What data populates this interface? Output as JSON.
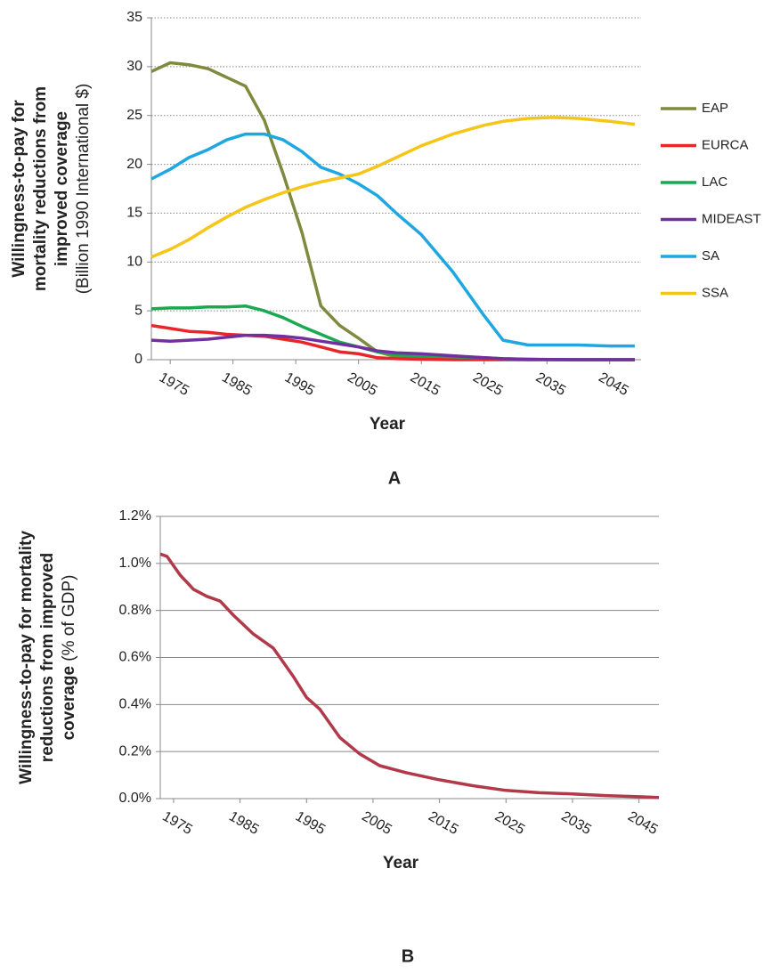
{
  "chart_data": [
    {
      "type": "line",
      "panel_label": "A",
      "y_label": [
        "Willingness-to-pay for",
        "mortality reductions from",
        "improved coverage",
        "(Billion 1990 International $)"
      ],
      "x_label": "Year",
      "x": [
        1972,
        1975,
        1978,
        1981,
        1984,
        1987,
        1990,
        1993,
        1996,
        1999,
        2002,
        2005,
        2008,
        2011,
        2015,
        2020,
        2025,
        2028,
        2032,
        2036,
        2040,
        2045,
        2049
      ],
      "series": [
        {
          "name": "EAP",
          "color": "#7f8a3e",
          "values": [
            29.5,
            30.4,
            30.2,
            29.8,
            28.9,
            28.0,
            24.5,
            19.0,
            13.0,
            5.5,
            3.5,
            2.2,
            0.8,
            0.3,
            0.2,
            0.1,
            0.1,
            0.05,
            0,
            0,
            0,
            0,
            0
          ]
        },
        {
          "name": "EURCA",
          "color": "#e8262a",
          "values": [
            3.5,
            3.2,
            2.9,
            2.8,
            2.6,
            2.5,
            2.4,
            2.1,
            1.8,
            1.3,
            0.8,
            0.6,
            0.2,
            0.1,
            0.05,
            0,
            0,
            0,
            0,
            0,
            0,
            0,
            0
          ]
        },
        {
          "name": "LAC",
          "color": "#1aa850",
          "values": [
            5.2,
            5.3,
            5.3,
            5.4,
            5.4,
            5.5,
            5.0,
            4.3,
            3.4,
            2.6,
            1.8,
            1.3,
            0.8,
            0.5,
            0.4,
            0.3,
            0.2,
            0.1,
            0.05,
            0,
            0,
            0,
            0
          ]
        },
        {
          "name": "MIDEAST",
          "color": "#7030a0",
          "values": [
            2.0,
            1.9,
            2.0,
            2.1,
            2.3,
            2.5,
            2.5,
            2.4,
            2.2,
            1.9,
            1.6,
            1.3,
            0.9,
            0.7,
            0.6,
            0.4,
            0.2,
            0.1,
            0.05,
            0.02,
            0,
            0,
            0
          ]
        },
        {
          "name": "SA",
          "color": "#1ea7e0",
          "values": [
            18.5,
            19.5,
            20.7,
            21.5,
            22.5,
            23.1,
            23.1,
            22.5,
            21.3,
            19.7,
            19.0,
            18.0,
            16.8,
            15.0,
            12.8,
            9.0,
            4.5,
            2.0,
            1.5,
            1.5,
            1.5,
            1.4,
            1.4
          ]
        },
        {
          "name": "SSA",
          "color": "#f5c518",
          "values": [
            10.5,
            11.3,
            12.3,
            13.5,
            14.6,
            15.6,
            16.4,
            17.1,
            17.7,
            18.2,
            18.6,
            19.0,
            19.8,
            20.7,
            21.9,
            23.1,
            24.0,
            24.4,
            24.7,
            24.8,
            24.7,
            24.4,
            24.1
          ]
        }
      ],
      "xlim": [
        1972,
        2050
      ],
      "xticks": [
        1975,
        1985,
        1995,
        2005,
        2015,
        2025,
        2035,
        2045
      ],
      "ylim": [
        0,
        35
      ],
      "yticks": [
        0,
        5,
        10,
        15,
        20,
        25,
        30,
        35
      ],
      "grid": true,
      "grid_style": "dotted",
      "legend": "right"
    },
    {
      "type": "line",
      "panel_label": "B",
      "y_label": [
        "Willingness-to-pay for mortality",
        "reductions from improved",
        "coverage"
      ],
      "y_label_unit": "(% of GDP)",
      "x_label": "Year",
      "x": [
        1973,
        1974,
        1976,
        1978,
        1980,
        1982,
        1984,
        1987,
        1990,
        1993,
        1995,
        1997,
        2000,
        2003,
        2006,
        2010,
        2015,
        2020,
        2025,
        2030,
        2035,
        2040,
        2045,
        2048
      ],
      "series": [
        {
          "name": null,
          "color": "#b03a4a",
          "values": [
            1.04,
            1.03,
            0.95,
            0.89,
            0.86,
            0.84,
            0.78,
            0.7,
            0.64,
            0.52,
            0.43,
            0.38,
            0.26,
            0.19,
            0.14,
            0.11,
            0.08,
            0.055,
            0.035,
            0.025,
            0.02,
            0.013,
            0.008,
            0.005
          ]
        }
      ],
      "xlim": [
        1973,
        2048
      ],
      "xticks": [
        1975,
        1985,
        1995,
        2005,
        2015,
        2025,
        2035,
        2045
      ],
      "ylim": [
        0,
        1.2
      ],
      "yticks": [
        {
          "value": 0,
          "label": "0.0%"
        },
        {
          "value": 0.2,
          "label": "0.2%"
        },
        {
          "value": 0.4,
          "label": "0.4%"
        },
        {
          "value": 0.6,
          "label": "0.6%"
        },
        {
          "value": 0.8,
          "label": "0.8%"
        },
        {
          "value": 1.0,
          "label": "1.0%"
        },
        {
          "value": 1.2,
          "label": "1.2%"
        }
      ],
      "grid": true,
      "grid_style": "solid",
      "legend": null
    }
  ]
}
